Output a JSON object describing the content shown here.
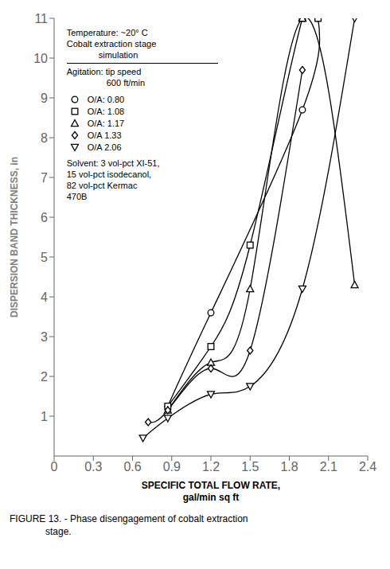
{
  "chart_data": {
    "type": "line",
    "xlabel": [
      "SPECIFIC TOTAL FLOW RATE,",
      "gal/min sq ft"
    ],
    "ylabel": "DISPERSION BAND THICKNESS, in",
    "xlim": [
      0,
      2.4
    ],
    "ylim": [
      0,
      11
    ],
    "xticks": [
      0,
      0.3,
      0.6,
      0.9,
      1.2,
      1.5,
      1.8,
      2.1,
      2.4
    ],
    "yticks": [
      1,
      2,
      3,
      4,
      5,
      6,
      7,
      8,
      9,
      10,
      11
    ],
    "grid": false,
    "legend": "upper left",
    "annotations": [
      "Temperature: ~20° C",
      "Cobalt extraction stage",
      "simulation",
      "Agitation: tip speed",
      "600 ft/min",
      "Solvent: 3 vol-pct XI-51,",
      "15 vol-pct isodecanol,",
      "82 vol-pct Kermac",
      "470B"
    ],
    "caption": [
      "FIGURE 13. - Phase disengagement of cobalt extraction",
      "stage."
    ],
    "series": [
      {
        "name": "O/A: 0.80",
        "marker": "circle",
        "color": "#000000",
        "x": [
          0.87,
          1.2,
          1.9,
          2.02
        ],
        "values": [
          1.25,
          3.6,
          8.7,
          11.0
        ]
      },
      {
        "name": "O/A: 1.08",
        "marker": "square",
        "color": "#000000",
        "x": [
          0.87,
          1.2,
          1.5,
          1.9,
          2.02
        ],
        "values": [
          1.25,
          2.75,
          5.3,
          11.0,
          11.0
        ]
      },
      {
        "name": "O/A: 1.17",
        "marker": "triangle",
        "color": "#000000",
        "x": [
          0.87,
          1.2,
          1.5,
          1.9,
          2.3
        ],
        "values": [
          1.15,
          2.35,
          4.2,
          11.0,
          4.3
        ]
      },
      {
        "name": "O/A  1.33",
        "marker": "diamond",
        "color": "#000000",
        "x": [
          0.72,
          0.87,
          1.2,
          1.5,
          1.9
        ],
        "values": [
          0.85,
          1.15,
          2.2,
          2.65,
          9.7
        ]
      },
      {
        "name": "O/A  2.06",
        "marker": "triangle-down",
        "color": "#000000",
        "x": [
          0.68,
          0.87,
          1.2,
          1.5,
          1.9,
          2.3
        ],
        "values": [
          0.45,
          0.95,
          1.55,
          1.75,
          4.2,
          11.0
        ]
      }
    ]
  }
}
